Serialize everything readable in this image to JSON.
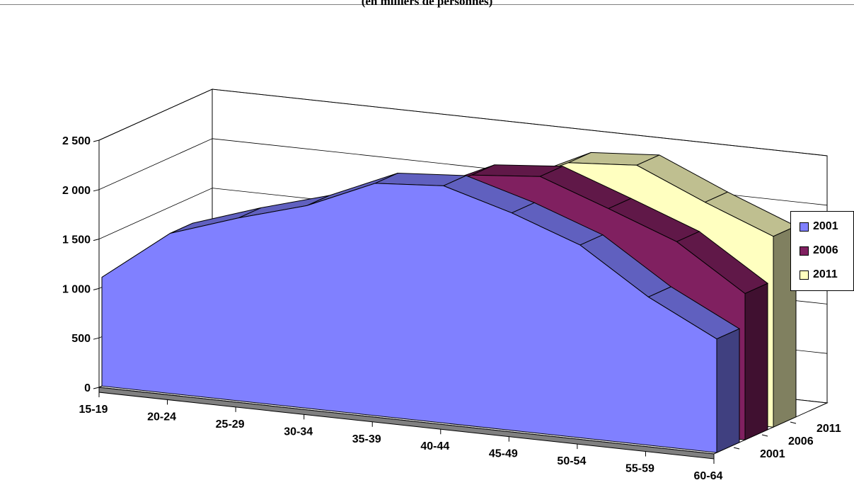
{
  "subtitle": "(en milliers de personnes)",
  "chart_data": {
    "type": "area",
    "subtype": "3d-area",
    "categories": [
      "15-19",
      "20-24",
      "25-29",
      "30-34",
      "35-39",
      "40-44",
      "45-49",
      "50-54",
      "55-59",
      "60-64"
    ],
    "series_axis_labels": [
      "2001",
      "2006",
      "2011"
    ],
    "series": [
      {
        "name": "2001",
        "color": "#8080ff",
        "values": [
          1100,
          1620,
          1850,
          2050,
          2350,
          2400,
          2200,
          1950,
          1500,
          1150
        ]
      },
      {
        "name": "2006",
        "color": "#802060",
        "values": [
          1080,
          1390,
          1690,
          1870,
          2060,
          2380,
          2440,
          2190,
          1930,
          1480
        ]
      },
      {
        "name": "2011",
        "color": "#ffffc0",
        "values": [
          1100,
          1250,
          1410,
          1700,
          1920,
          2120,
          2450,
          2500,
          2200,
          1930
        ]
      }
    ],
    "y_ticks": [
      "0",
      "500",
      "1 000",
      "1 500",
      "2 000",
      "2 500"
    ],
    "ylim": [
      0,
      2500
    ],
    "grid": true,
    "legend_position": "right"
  }
}
